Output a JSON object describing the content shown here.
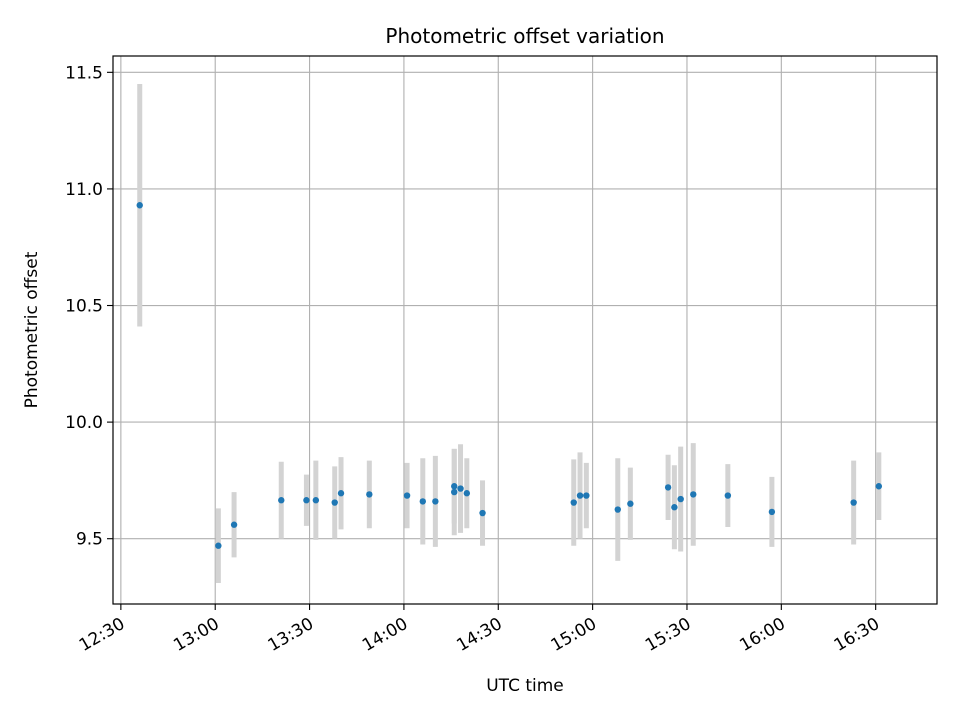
{
  "chart_data": {
    "type": "scatter",
    "title": "Photometric offset variation",
    "xlabel": "UTC time",
    "ylabel": "Photometric offset",
    "x_unit": "time of day (HH:MM UTC)",
    "xlim": [
      "12:30",
      "16:50"
    ],
    "ylim": [
      9.22,
      11.57
    ],
    "grid": true,
    "colors": {
      "point": "#1f77b4",
      "errorbar": "#d3d3d3",
      "grid": "#b0b0b0"
    },
    "x_ticks": [
      "12:30",
      "13:00",
      "13:30",
      "14:00",
      "14:30",
      "15:00",
      "15:30",
      "16:00",
      "16:30"
    ],
    "y_ticks": [
      {
        "value": 9.5,
        "label": "9.5"
      },
      {
        "value": 10.0,
        "label": "10.0"
      },
      {
        "value": 10.5,
        "label": "10.5"
      },
      {
        "value": 11.0,
        "label": "11.0"
      },
      {
        "value": 11.5,
        "label": "11.5"
      }
    ],
    "points": [
      {
        "x": "12:36",
        "y": 10.93,
        "err": 0.52
      },
      {
        "x": "13:01",
        "y": 9.47,
        "err": 0.16
      },
      {
        "x": "13:06",
        "y": 9.56,
        "err": 0.14
      },
      {
        "x": "13:21",
        "y": 9.665,
        "err": 0.165
      },
      {
        "x": "13:29",
        "y": 9.665,
        "err": 0.11
      },
      {
        "x": "13:32",
        "y": 9.665,
        "err": 0.17
      },
      {
        "x": "13:38",
        "y": 9.655,
        "err": 0.155
      },
      {
        "x": "13:40",
        "y": 9.695,
        "err": 0.155
      },
      {
        "x": "13:49",
        "y": 9.69,
        "err": 0.145
      },
      {
        "x": "14:01",
        "y": 9.685,
        "err": 0.14
      },
      {
        "x": "14:06",
        "y": 9.66,
        "err": 0.185
      },
      {
        "x": "14:10",
        "y": 9.66,
        "err": 0.195
      },
      {
        "x": "14:16",
        "y": 9.7,
        "err": 0.185
      },
      {
        "x": "14:16",
        "y": 9.725,
        "err": 0.16
      },
      {
        "x": "14:18",
        "y": 9.715,
        "err": 0.19
      },
      {
        "x": "14:20",
        "y": 9.695,
        "err": 0.15
      },
      {
        "x": "14:25",
        "y": 9.61,
        "err": 0.14
      },
      {
        "x": "14:54",
        "y": 9.655,
        "err": 0.185
      },
      {
        "x": "14:56",
        "y": 9.685,
        "err": 0.185
      },
      {
        "x": "14:58",
        "y": 9.685,
        "err": 0.14
      },
      {
        "x": "15:08",
        "y": 9.625,
        "err": 0.22
      },
      {
        "x": "15:12",
        "y": 9.65,
        "err": 0.155
      },
      {
        "x": "15:24",
        "y": 9.72,
        "err": 0.14
      },
      {
        "x": "15:26",
        "y": 9.635,
        "err": 0.18
      },
      {
        "x": "15:28",
        "y": 9.67,
        "err": 0.225
      },
      {
        "x": "15:32",
        "y": 9.69,
        "err": 0.22
      },
      {
        "x": "15:43",
        "y": 9.685,
        "err": 0.135
      },
      {
        "x": "15:57",
        "y": 9.615,
        "err": 0.15
      },
      {
        "x": "16:23",
        "y": 9.655,
        "err": 0.18
      },
      {
        "x": "16:31",
        "y": 9.725,
        "err": 0.145
      }
    ]
  }
}
